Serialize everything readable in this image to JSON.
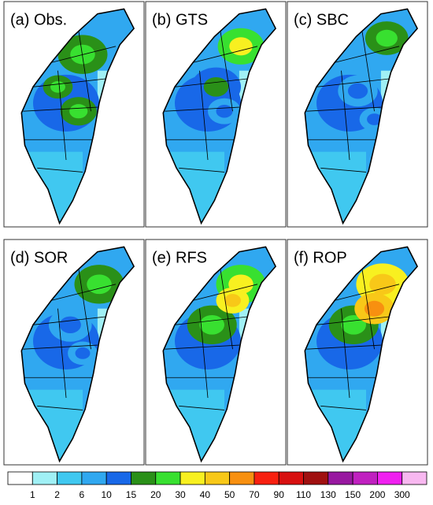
{
  "panels": [
    {
      "label": "(a) Obs."
    },
    {
      "label": "(b) GTS"
    },
    {
      "label": "(c) SBC"
    },
    {
      "label": "(d) SOR"
    },
    {
      "label": "(e) RFS"
    },
    {
      "label": "(f) ROP"
    }
  ],
  "colorbar": {
    "labels": [
      1,
      2,
      6,
      10,
      15,
      20,
      30,
      40,
      50,
      70,
      90,
      110,
      130,
      150,
      200,
      300
    ],
    "colors": [
      "#ffffff",
      "#a0f0f5",
      "#40c8f0",
      "#30a8f0",
      "#1868e8",
      "#2a9018",
      "#38e030",
      "#f8f020",
      "#f8c818",
      "#f89010",
      "#f82010",
      "#d81010",
      "#a01010",
      "#9818a0",
      "#c020c0",
      "#f020f0",
      "#f8b8f0"
    ]
  }
}
